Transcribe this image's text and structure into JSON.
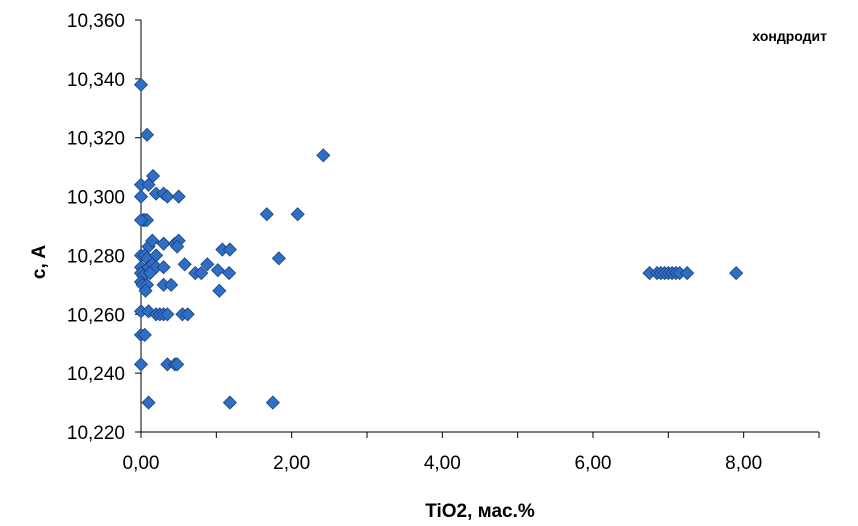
{
  "chart_data": {
    "type": "scatter",
    "title": "",
    "xlabel": "TiO2, мас.%",
    "ylabel": "c, A",
    "xlim": [
      0,
      9
    ],
    "ylim": [
      10.22,
      10.36
    ],
    "grid": false,
    "legend_placement": "top-right",
    "marker": "diamond",
    "colors": {
      "marker_fill": "#2E6FC4",
      "marker_edge": "#1B3F80",
      "axis": "#000000"
    },
    "x_ticks": [
      "0,00",
      "2,00",
      "4,00",
      "6,00",
      "8,00"
    ],
    "y_ticks": [
      "10,220",
      "10,240",
      "10,260",
      "10,280",
      "10,300",
      "10,320",
      "10,340",
      "10,360"
    ],
    "series": [
      {
        "name": "хондродит",
        "points": [
          [
            0.0,
            10.338
          ],
          [
            0.08,
            10.321
          ],
          [
            0.0,
            10.304
          ],
          [
            0.1,
            10.304
          ],
          [
            0.16,
            10.307
          ],
          [
            0.2,
            10.301
          ],
          [
            0.3,
            10.301
          ],
          [
            0.35,
            10.3
          ],
          [
            0.5,
            10.3
          ],
          [
            0.0,
            10.3
          ],
          [
            0.03,
            10.292
          ],
          [
            0.05,
            10.292
          ],
          [
            0.08,
            10.292
          ],
          [
            0.0,
            10.292
          ],
          [
            0.1,
            10.283
          ],
          [
            0.15,
            10.285
          ],
          [
            0.3,
            10.284
          ],
          [
            0.45,
            10.284
          ],
          [
            0.5,
            10.285
          ],
          [
            0.48,
            10.283
          ],
          [
            0.0,
            10.28
          ],
          [
            0.05,
            10.28
          ],
          [
            0.08,
            10.279
          ],
          [
            0.2,
            10.28
          ],
          [
            0.0,
            10.276
          ],
          [
            0.1,
            10.276
          ],
          [
            0.15,
            10.277
          ],
          [
            0.2,
            10.276
          ],
          [
            0.3,
            10.276
          ],
          [
            0.58,
            10.277
          ],
          [
            0.0,
            10.274
          ],
          [
            0.03,
            10.273
          ],
          [
            0.12,
            10.274
          ],
          [
            0.72,
            10.274
          ],
          [
            0.8,
            10.274
          ],
          [
            0.88,
            10.277
          ],
          [
            1.02,
            10.275
          ],
          [
            1.08,
            10.282
          ],
          [
            1.18,
            10.282
          ],
          [
            1.17,
            10.274
          ],
          [
            1.83,
            10.279
          ],
          [
            0.0,
            10.271
          ],
          [
            0.02,
            10.27
          ],
          [
            0.08,
            10.27
          ],
          [
            0.3,
            10.27
          ],
          [
            0.4,
            10.27
          ],
          [
            0.06,
            10.268
          ],
          [
            1.04,
            10.268
          ],
          [
            0.0,
            10.261
          ],
          [
            0.1,
            10.261
          ],
          [
            0.2,
            10.26
          ],
          [
            0.25,
            10.26
          ],
          [
            0.3,
            10.26
          ],
          [
            0.35,
            10.26
          ],
          [
            0.55,
            10.26
          ],
          [
            0.62,
            10.26
          ],
          [
            0.0,
            10.253
          ],
          [
            0.05,
            10.253
          ],
          [
            0.0,
            10.243
          ],
          [
            0.35,
            10.243
          ],
          [
            0.45,
            10.243
          ],
          [
            0.48,
            10.243
          ],
          [
            0.1,
            10.23
          ],
          [
            1.18,
            10.23
          ],
          [
            1.75,
            10.23
          ],
          [
            1.67,
            10.294
          ],
          [
            2.08,
            10.294
          ],
          [
            2.42,
            10.314
          ],
          [
            6.75,
            10.274
          ],
          [
            6.85,
            10.274
          ],
          [
            6.9,
            10.274
          ],
          [
            6.95,
            10.274
          ],
          [
            7.0,
            10.274
          ],
          [
            7.05,
            10.274
          ],
          [
            7.1,
            10.274
          ],
          [
            7.15,
            10.274
          ],
          [
            7.25,
            10.274
          ],
          [
            7.9,
            10.274
          ]
        ]
      }
    ]
  }
}
